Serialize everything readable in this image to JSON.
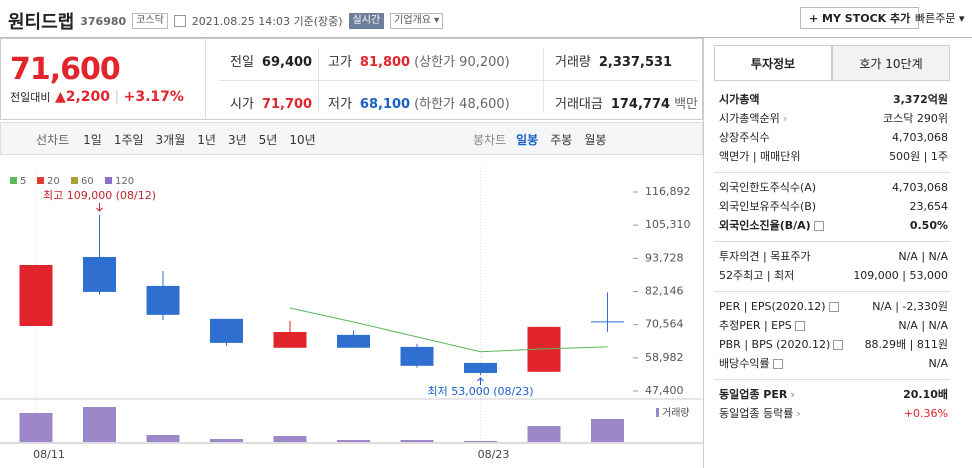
{
  "header": {
    "name": "원티드랩",
    "code": "376980",
    "market": "코스닥",
    "datetime": "2021.08.25 14:03 기준(장중)",
    "realtime": "실시간",
    "overview": "기업개요",
    "mystock": "+ MY STOCK 추가",
    "quick_order": "빠른주문"
  },
  "quote": {
    "price": "71,600",
    "change_label": "전일대비",
    "change": "▲2,200",
    "change_pct": "+3.17%"
  },
  "summary": [
    {
      "label": "전일",
      "value": "69,400"
    },
    {
      "label": "고가",
      "value": "81,800",
      "color": "#e2242c",
      "extra": "(상한가 90,200)"
    },
    {
      "label": "거래량",
      "value": "2,337,531"
    },
    {
      "label": "시가",
      "value": "71,700",
      "color": "#e2242c"
    },
    {
      "label": "저가",
      "value": "68,100",
      "color": "#1a5fc7",
      "extra": "(하한가 48,600)"
    },
    {
      "label": "거래대금",
      "value": "174,774",
      "extra": "백만"
    }
  ],
  "chart_tabs": {
    "line_label": "선차트",
    "line": [
      "1일",
      "1주일",
      "3개월",
      "1년",
      "3년",
      "5년",
      "10년"
    ],
    "candle_label": "봉차트",
    "candle": [
      "일봉",
      "주봉",
      "월봉"
    ],
    "selected": 0
  },
  "chart_data": {
    "type": "candlestick",
    "categories": [
      "08/11",
      null,
      null,
      null,
      null,
      null,
      null,
      "08/23",
      null,
      null
    ],
    "open": [
      70100,
      94200,
      84100,
      72600,
      62500,
      67000,
      62800,
      57200,
      54100,
      71700
    ],
    "high": [
      91400,
      109000,
      89300,
      72600,
      71900,
      68400,
      63900,
      57200,
      69800,
      81800
    ],
    "low": [
      70100,
      81000,
      72200,
      63200,
      62500,
      62500,
      55500,
      53000,
      54100,
      68100
    ],
    "close": [
      91400,
      82000,
      74000,
      64200,
      68000,
      62500,
      56200,
      53700,
      69800,
      71600
    ],
    "volume": [
      2947000,
      3557000,
      711000,
      305000,
      610000,
      203000,
      203000,
      102000,
      1626000,
      2337531
    ],
    "up_color": "#e2242c",
    "down_color": "#2f6fd0",
    "volume_color": "#9c88c9",
    "ma": [
      {
        "name": "5",
        "color": "#5cb85c",
        "values": [
          null,
          null,
          null,
          null,
          76400,
          71500,
          66300,
          61100,
          62100,
          62800
        ]
      },
      {
        "name": "20",
        "color": "#e03c31"
      },
      {
        "name": "60",
        "color": "#a8a030"
      },
      {
        "name": "120",
        "color": "#8e6ec8"
      }
    ],
    "ylim": [
      47400,
      116892
    ],
    "yticks": [
      {
        "value": 116892,
        "label": "116,892"
      },
      {
        "value": 105310,
        "label": "105,310"
      },
      {
        "value": 93728,
        "label": "93,728"
      },
      {
        "value": 82146,
        "label": "82,146"
      },
      {
        "value": 70564,
        "label": "70,564"
      },
      {
        "value": 58982,
        "label": "58,982"
      },
      {
        "value": 47400,
        "label": "47,400"
      }
    ],
    "high_label": "최고 109,000 (08/12)",
    "low_label": "최저 53,000 (08/23)",
    "volume_label": "거래량"
  },
  "info": {
    "tabs": [
      "투자정보",
      "호가 10단계"
    ],
    "groups": [
      [
        {
          "label": "시가총액",
          "value": "3,372억원",
          "bold": true
        },
        {
          "label": "시가총액순위",
          "value": "코스닥 290위",
          "more": true
        },
        {
          "label": "상장주식수",
          "value": "4,703,068"
        },
        {
          "label": "액면가 | 매매단위",
          "value": "500원 | 1주"
        }
      ],
      [
        {
          "label": "외국인한도주식수(A)",
          "value": "4,703,068"
        },
        {
          "label": "외국인보유주식수(B)",
          "value": "23,654"
        },
        {
          "label": "외국인소진율(B/A)",
          "value": "0.50%",
          "bold": true,
          "help": true
        }
      ],
      [
        {
          "label": "투자의견 | 목표주가",
          "value": "N/A | N/A"
        },
        {
          "label": "52주최고 | 최저",
          "value": "109,000 | 53,000"
        }
      ],
      [
        {
          "label": "PER | EPS(2020.12)",
          "value": "N/A | -2,330원",
          "help": true
        },
        {
          "label": "추정PER | EPS",
          "value": "N/A | N/A",
          "help": true
        },
        {
          "label": "PBR | BPS (2020.12)",
          "value": "88.29배 | 811원",
          "help": true
        },
        {
          "label": "배당수익률",
          "value": "N/A",
          "help": true
        }
      ],
      [
        {
          "label": "동일업종 PER",
          "value": "20.10배",
          "bold": true,
          "more": true
        },
        {
          "label": "동일업종 등락률",
          "value": "+0.36%",
          "more": true,
          "color": "#e2242c"
        }
      ]
    ]
  }
}
